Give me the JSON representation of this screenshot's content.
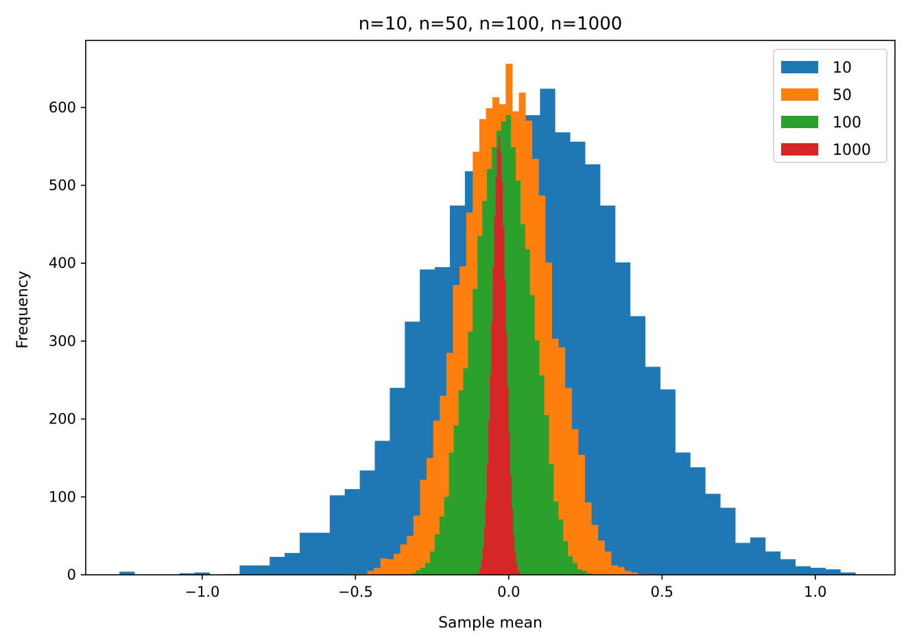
{
  "chart_data": {
    "type": "bar",
    "title": "n=10, n=50, n=100, n=1000",
    "xlabel": "Sample mean",
    "ylabel": "Frequency",
    "xlim": [
      -1.38,
      1.26
    ],
    "ylim": [
      0,
      686
    ],
    "x_ticks": [
      -1.0,
      -0.5,
      0.0,
      0.5,
      1.0
    ],
    "x_tick_labels": [
      "−1.0",
      "−0.5",
      "0.0",
      "0.5",
      "1.0"
    ],
    "y_ticks": [
      0,
      100,
      200,
      300,
      400,
      500,
      600
    ],
    "y_tick_labels": [
      "0",
      "100",
      "200",
      "300",
      "400",
      "500",
      "600"
    ],
    "grid": false,
    "legend": {
      "position": "top-right",
      "entries": [
        "10",
        "50",
        "100",
        "1000"
      ]
    },
    "series": [
      {
        "name": "10",
        "color": "#1f77b4",
        "bin_start": -1.27,
        "bin_width": 0.049,
        "values": [
          4,
          0,
          0,
          0,
          2,
          3,
          0,
          1,
          12,
          12,
          23,
          28,
          54,
          54,
          102,
          110,
          134,
          172,
          240,
          325,
          392,
          395,
          474,
          518,
          533,
          585,
          567,
          590,
          624,
          568,
          556,
          527,
          474,
          401,
          332,
          267,
          238,
          157,
          138,
          104,
          86,
          41,
          48,
          30,
          20,
          11,
          9,
          7,
          3,
          0
        ]
      },
      {
        "name": "50",
        "color": "#ff7f0e",
        "bin_start": -0.526,
        "bin_width": 0.0215,
        "values": [
          1,
          1,
          1,
          5,
          9,
          21,
          20,
          27,
          39,
          50,
          76,
          122,
          150,
          198,
          230,
          285,
          372,
          396,
          465,
          543,
          585,
          599,
          613,
          604,
          656,
          595,
          619,
          583,
          534,
          487,
          401,
          303,
          292,
          240,
          187,
          154,
          93,
          64,
          44,
          30,
          12,
          10,
          5,
          3,
          1,
          1
        ]
      },
      {
        "name": "100",
        "color": "#2ca02c",
        "bin_start": -0.35,
        "bin_width": 0.0155,
        "values": [
          1,
          0,
          2,
          6,
          9,
          15,
          30,
          52,
          75,
          100,
          157,
          192,
          237,
          265,
          312,
          367,
          435,
          480,
          521,
          549,
          570,
          582,
          590,
          549,
          506,
          450,
          418,
          359,
          301,
          256,
          205,
          142,
          94,
          71,
          43,
          24,
          15,
          7,
          5,
          2
        ]
      },
      {
        "name": "1000",
        "color": "#d62728",
        "bin_start": -0.104,
        "bin_width": 0.0047,
        "values": [
          1,
          3,
          8,
          19,
          35,
          62,
          96,
          142,
          198,
          257,
          325,
          396,
          460,
          511,
          548,
          562,
          541,
          504,
          447,
          380,
          310,
          242,
          182,
          128,
          85,
          52,
          30,
          16,
          7,
          3
        ]
      }
    ]
  }
}
